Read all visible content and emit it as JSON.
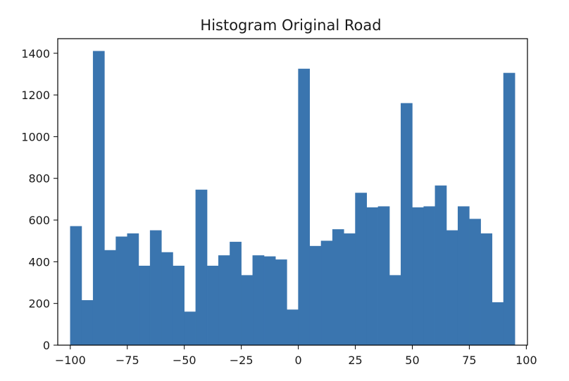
{
  "chart_data": {
    "type": "bar",
    "title": "Histogram Original Road",
    "xlabel": "",
    "ylabel": "",
    "xlim": [
      -105.5,
      100.5
    ],
    "ylim": [
      0,
      1470
    ],
    "x_ticks": [
      -100,
      -75,
      -50,
      -25,
      0,
      25,
      50,
      75,
      100
    ],
    "x_tick_labels": [
      "−100",
      "−75",
      "−50",
      "−25",
      "0",
      "25",
      "50",
      "75",
      "100"
    ],
    "y_ticks": [
      0,
      200,
      400,
      600,
      800,
      1000,
      1200,
      1400
    ],
    "y_tick_labels": [
      "0",
      "200",
      "400",
      "600",
      "800",
      "1000",
      "1200",
      "1400"
    ],
    "bin_range": [
      -100,
      95
    ],
    "bin_width": 5,
    "values": [
      570,
      215,
      1410,
      455,
      520,
      535,
      380,
      550,
      445,
      380,
      160,
      745,
      380,
      430,
      495,
      335,
      430,
      425,
      410,
      170,
      1325,
      475,
      500,
      555,
      535,
      730,
      660,
      665,
      335,
      1160,
      660,
      665,
      765,
      550,
      665,
      605,
      535,
      205,
      1305
    ],
    "grid": false,
    "colors": {
      "bar": "#3a75af",
      "axes": "#000000",
      "text": "#1a1a1a"
    }
  }
}
